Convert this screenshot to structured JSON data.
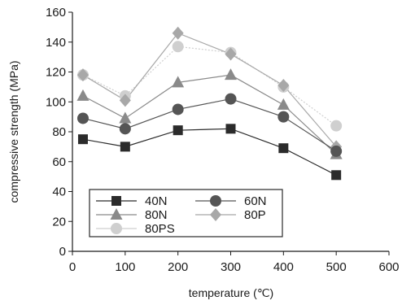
{
  "chart_data": {
    "type": "line",
    "xlabel": "temperature (℃)",
    "ylabel": "compressive strength (MPa)",
    "xlim": [
      0,
      600
    ],
    "ylim": [
      0,
      160
    ],
    "xticks": [
      0,
      100,
      200,
      300,
      400,
      500,
      600
    ],
    "yticks": [
      0,
      20,
      40,
      60,
      80,
      100,
      120,
      140,
      160
    ],
    "x": [
      20,
      100,
      200,
      300,
      400,
      500
    ],
    "grid": false,
    "legend_position": "bottom-left",
    "series": [
      {
        "name": "40N",
        "marker": "square",
        "color": "#2b2b2b",
        "values": [
          75,
          70,
          81,
          82,
          69,
          51
        ]
      },
      {
        "name": "60N",
        "marker": "circle",
        "color": "#555555",
        "values": [
          89,
          82,
          95,
          102,
          90,
          67
        ]
      },
      {
        "name": "80N",
        "marker": "triangle",
        "color": "#8a8a8a",
        "values": [
          104,
          89,
          113,
          118,
          98,
          65
        ]
      },
      {
        "name": "80P",
        "marker": "diamond",
        "color": "#a8a8a8",
        "values": [
          118,
          101,
          146,
          132,
          111,
          70
        ]
      },
      {
        "name": "80PS",
        "marker": "circle",
        "color": "#cfcfcf",
        "values": [
          118,
          104,
          137,
          133,
          110,
          84
        ]
      }
    ]
  }
}
